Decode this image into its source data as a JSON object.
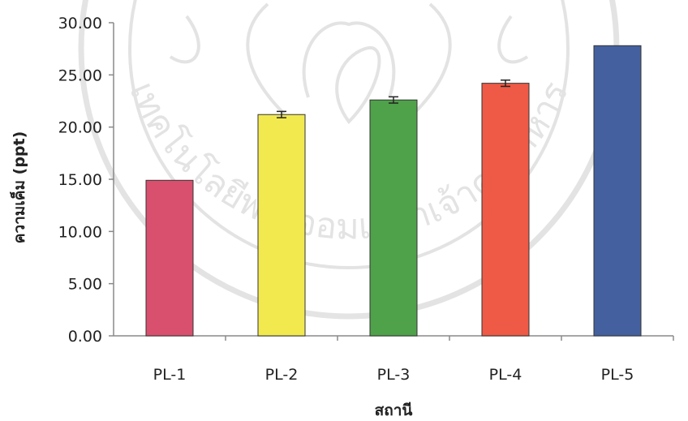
{
  "chart_data": {
    "type": "bar",
    "title": "",
    "xlabel": "สถานี",
    "ylabel": "ความเค็ม (ppt)",
    "categories": [
      "PL-1",
      "PL-2",
      "PL-3",
      "PL-4",
      "PL-5"
    ],
    "values": [
      14.9,
      21.2,
      22.6,
      24.2,
      27.8
    ],
    "errors": [
      0,
      0.3,
      0.3,
      0.3,
      0
    ],
    "colors": [
      "#d9506e",
      "#f2e94f",
      "#4fa24a",
      "#ee5a45",
      "#44609e"
    ],
    "ylim": [
      0,
      30
    ],
    "yticks": [
      "0.00",
      "5.00",
      "10.00",
      "15.00",
      "20.00",
      "25.00",
      "30.00"
    ],
    "ytick_values": [
      0,
      5,
      10,
      15,
      20,
      25,
      30
    ],
    "grid": false,
    "legend": "none"
  },
  "watermark": {
    "icon": "university-seal",
    "text": "เทคโนโลยีพระจอมเกล้าเจ้าคุณทหาร"
  }
}
